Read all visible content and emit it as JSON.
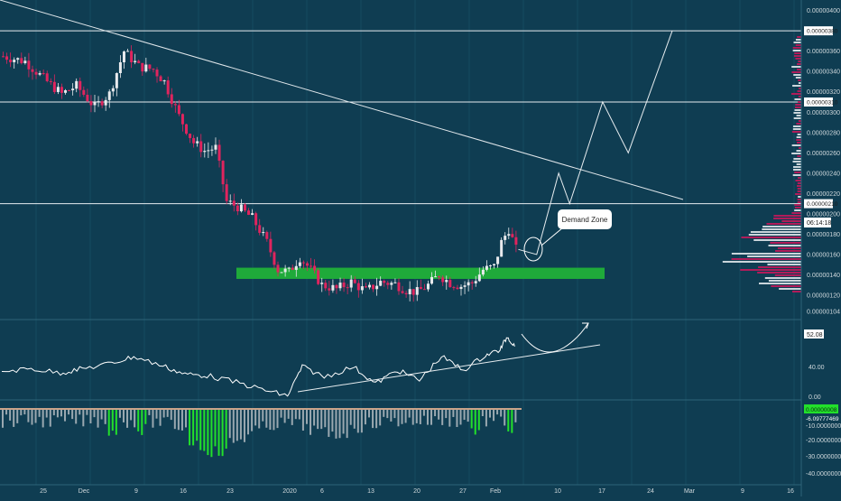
{
  "colors": {
    "background": "#0f3d52",
    "up_candle": "#e8eaed",
    "down_candle": "#e0245e",
    "demand_zone": "#1faa3a",
    "rsi_line": "#ffffff",
    "macd_positive": "#22e02b",
    "macd_bars": "#9aa8b0",
    "annotation": "#ffffff"
  },
  "price_axis": {
    "ticks": [
      "0.00000400",
      "0.00000380",
      "0.00000360",
      "0.00000340",
      "0.00000320",
      "0.00000310",
      "0.00000300",
      "0.00000280",
      "0.00000260",
      "0.00000240",
      "0.00000220",
      "0.00000210",
      "0.00000200",
      "0.00000180",
      "0.00000160",
      "0.00000140",
      "0.00000120",
      "0.00000104"
    ],
    "horizontal_levels": [
      "0.00000380",
      "0.00000310",
      "0.00000210"
    ],
    "countdown": "06:14:18"
  },
  "annotation": {
    "label": "Demand Zone"
  },
  "rsi_panel": {
    "value_label": "52.08",
    "ticks": [
      "40.00",
      "0.00"
    ]
  },
  "macd_panel": {
    "value_label": "0.00000008",
    "value_label_2": "-6.09777469",
    "ticks": [
      "-10.00000000",
      "-20.00000000",
      "-30.00000000",
      "-40.00000000"
    ]
  },
  "x_axis": {
    "labels": [
      "25",
      "Dec",
      "9",
      "16",
      "23",
      "2020",
      "6",
      "13",
      "20",
      "27",
      "Feb",
      "10",
      "17",
      "24",
      "Mar",
      "9",
      "16"
    ]
  },
  "chart_data": {
    "type": "candlestick",
    "title": "",
    "price_range": [
      1.04e-06,
      4.05e-06
    ],
    "levels": [
      3.8e-06,
      3.1e-06,
      2.1e-06
    ],
    "demand_zone": [
      1.36e-06,
      1.47e-06
    ],
    "close_path": [
      [
        0,
        3.55e-06
      ],
      [
        6,
        3.5e-06
      ],
      [
        12,
        3.3e-06
      ],
      [
        16,
        3.18e-06
      ],
      [
        20,
        3.26e-06
      ],
      [
        25,
        3.05e-06
      ],
      [
        29,
        3.18e-06
      ],
      [
        33,
        3.6e-06
      ],
      [
        37,
        3.45e-06
      ],
      [
        41,
        3.42e-06
      ],
      [
        44,
        3.3e-06
      ],
      [
        48,
        2.96e-06
      ],
      [
        52,
        2.7e-06
      ],
      [
        55,
        2.62e-06
      ],
      [
        58,
        2.65e-06
      ],
      [
        61,
        2.12e-06
      ],
      [
        64,
        2.07e-06
      ],
      [
        68,
        1.96e-06
      ],
      [
        72,
        1.72e-06
      ],
      [
        75,
        1.45e-06
      ],
      [
        78,
        1.43e-06
      ],
      [
        81,
        1.57e-06
      ],
      [
        84,
        1.45e-06
      ],
      [
        87,
        1.3e-06
      ],
      [
        91,
        1.26e-06
      ],
      [
        95,
        1.33e-06
      ],
      [
        99,
        1.24e-06
      ],
      [
        103,
        1.33e-06
      ],
      [
        107,
        1.31e-06
      ],
      [
        110,
        1.25e-06
      ],
      [
        113,
        1.23e-06
      ],
      [
        116,
        1.3e-06
      ],
      [
        119,
        1.4e-06
      ],
      [
        122,
        1.32e-06
      ],
      [
        125,
        1.29e-06
      ],
      [
        128,
        1.32e-06
      ],
      [
        131,
        1.45e-06
      ],
      [
        134,
        1.48e-06
      ],
      [
        136,
        1.72e-06
      ],
      [
        138,
        1.85e-06
      ],
      [
        140,
        1.65e-06
      ]
    ],
    "projection": [
      [
        141,
        1.65e-06
      ],
      [
        146,
        1.6e-06
      ],
      [
        152,
        2.4e-06
      ],
      [
        155,
        2.1e-06
      ],
      [
        164,
        3.1e-06
      ],
      [
        171,
        2.6e-06
      ],
      [
        183,
        3.8e-06
      ]
    ],
    "rsi": [
      [
        0,
        0.38
      ],
      [
        8,
        0.42
      ],
      [
        16,
        0.36
      ],
      [
        22,
        0.42
      ],
      [
        30,
        0.5
      ],
      [
        36,
        0.6
      ],
      [
        44,
        0.46
      ],
      [
        50,
        0.34
      ],
      [
        56,
        0.32
      ],
      [
        64,
        0.22
      ],
      [
        72,
        0.1
      ],
      [
        78,
        0.02
      ],
      [
        82,
        0.45
      ],
      [
        88,
        0.3
      ],
      [
        96,
        0.45
      ],
      [
        102,
        0.2
      ],
      [
        108,
        0.4
      ],
      [
        114,
        0.25
      ],
      [
        120,
        0.6
      ],
      [
        126,
        0.4
      ],
      [
        132,
        0.62
      ],
      [
        136,
        0.7
      ],
      [
        138,
        0.9
      ],
      [
        140,
        0.75
      ]
    ],
    "rsi_value": 52.08
  }
}
